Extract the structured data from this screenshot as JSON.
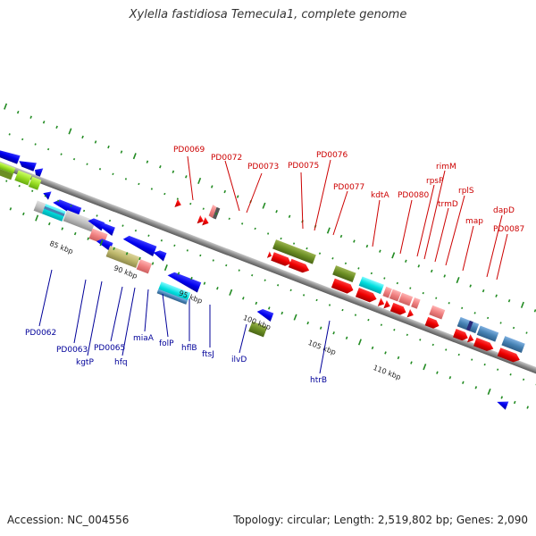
{
  "title": "Xylella fastidiosa Temecula1, complete genome",
  "footer": {
    "accession": "Accession: NC_004556",
    "summary": "Topology: circular; Length: 2,519,802 bp; Genes: 2,090"
  },
  "colors": {
    "forward_label": "#cc0000",
    "reverse_label": "#000099",
    "backbone": "#8c8c8c",
    "tick": "#228b22"
  },
  "kbp_ticks": [
    "85 kbp",
    "90 kbp",
    "95 kbp",
    "100 kbp",
    "105 kbp",
    "110 kbp"
  ],
  "forward_labels": [
    "PD0069",
    "PD0072",
    "PD0073",
    "PD0075",
    "PD0076",
    "PD0077",
    "kdtA",
    "PD0080",
    "rpsP",
    "rimM",
    "trmD",
    "rplS",
    "map",
    "dapD",
    "PD0087"
  ],
  "reverse_labels": [
    "PD0062",
    "PD0063",
    "kgtP",
    "PD0065",
    "hfq",
    "miaA",
    "folP",
    "hflB",
    "ftsJ",
    "ilvD",
    "htrB"
  ]
}
